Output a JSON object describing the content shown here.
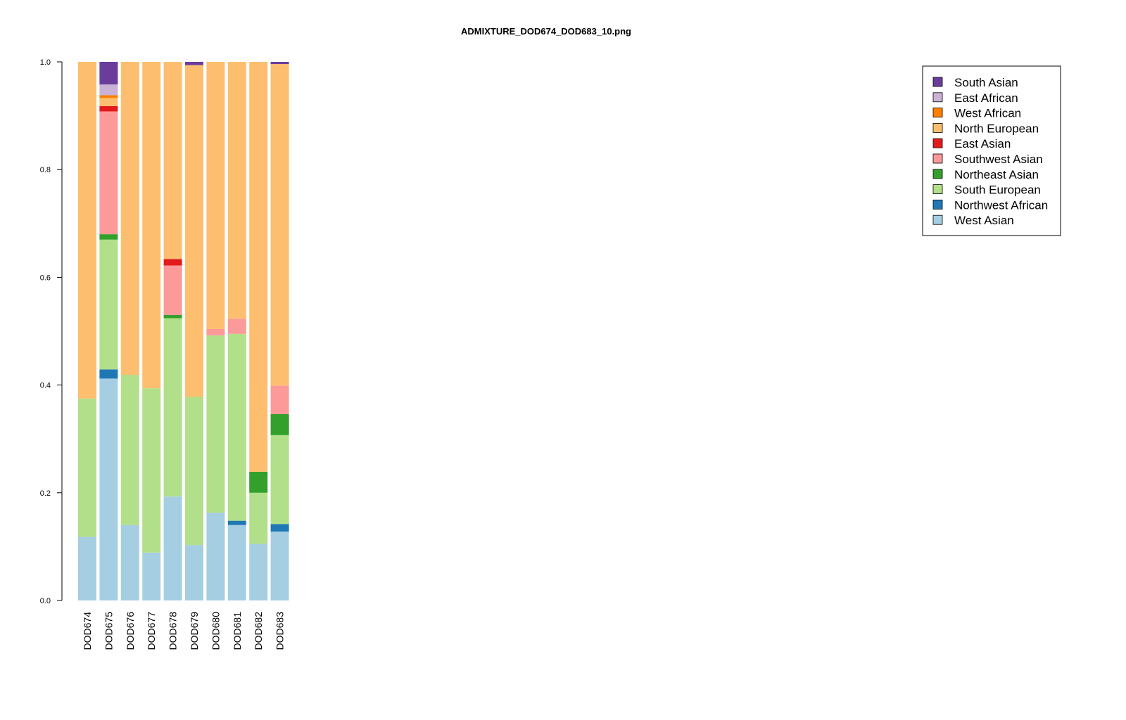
{
  "chart_data": {
    "type": "bar",
    "stacked": true,
    "title": "ADMIXTURE_DOD674_DOD683_10.png",
    "xlabel": "",
    "ylabel": "",
    "ylim": [
      0,
      1
    ],
    "yticks": [
      "0.0",
      "0.2",
      "0.4",
      "0.6",
      "0.8",
      "1.0"
    ],
    "grid": false,
    "legend_position": "top-right",
    "categories": [
      "DOD674",
      "DOD675",
      "DOD676",
      "DOD677",
      "DOD678",
      "DOD679",
      "DOD680",
      "DOD681",
      "DOD682",
      "DOD683"
    ],
    "series": [
      {
        "name": "West Asian",
        "color": "#a6cee3",
        "values": [
          0.118,
          0.412,
          0.14,
          0.089,
          0.193,
          0.103,
          0.163,
          0.14,
          0.105,
          0.128
        ]
      },
      {
        "name": "Northwest African",
        "color": "#1f78b4",
        "values": [
          0,
          0.017,
          0,
          0,
          0,
          0,
          0,
          0.008,
          0,
          0.014
        ]
      },
      {
        "name": "South European",
        "color": "#b2df8a",
        "values": [
          0.257,
          0.241,
          0.279,
          0.305,
          0.331,
          0.275,
          0.329,
          0.347,
          0.095,
          0.165
        ]
      },
      {
        "name": "Northeast Asian",
        "color": "#33a02c",
        "values": [
          0,
          0.01,
          0,
          0,
          0.006,
          0,
          0,
          0,
          0.039,
          0.039
        ]
      },
      {
        "name": "Southwest Asian",
        "color": "#fb9a99",
        "values": [
          0,
          0.228,
          0,
          0,
          0.092,
          0,
          0.012,
          0.028,
          0,
          0.053
        ]
      },
      {
        "name": "East Asian",
        "color": "#e31a1c",
        "values": [
          0,
          0.01,
          0,
          0,
          0.012,
          0,
          0,
          0,
          0,
          0
        ]
      },
      {
        "name": "North European",
        "color": "#fdbf6f",
        "values": [
          0.625,
          0.015,
          0.581,
          0.606,
          0.366,
          0.616,
          0.496,
          0.477,
          0.761,
          0.597
        ]
      },
      {
        "name": "West African",
        "color": "#ff7f00",
        "values": [
          0,
          0.005,
          0,
          0,
          0,
          0,
          0,
          0,
          0,
          0
        ]
      },
      {
        "name": "East African",
        "color": "#cab2d6",
        "values": [
          0,
          0.02,
          0,
          0,
          0,
          0,
          0,
          0,
          0,
          0
        ]
      },
      {
        "name": "South Asian",
        "color": "#6a3d9a",
        "values": [
          0,
          0.042,
          0,
          0,
          0,
          0.006,
          0,
          0,
          0,
          0.004
        ]
      }
    ]
  },
  "legend": {
    "entries": [
      "South Asian",
      "East African",
      "West African",
      "North European",
      "East Asian",
      "Southwest Asian",
      "Northeast Asian",
      "South European",
      "Northwest African",
      "West Asian"
    ]
  }
}
